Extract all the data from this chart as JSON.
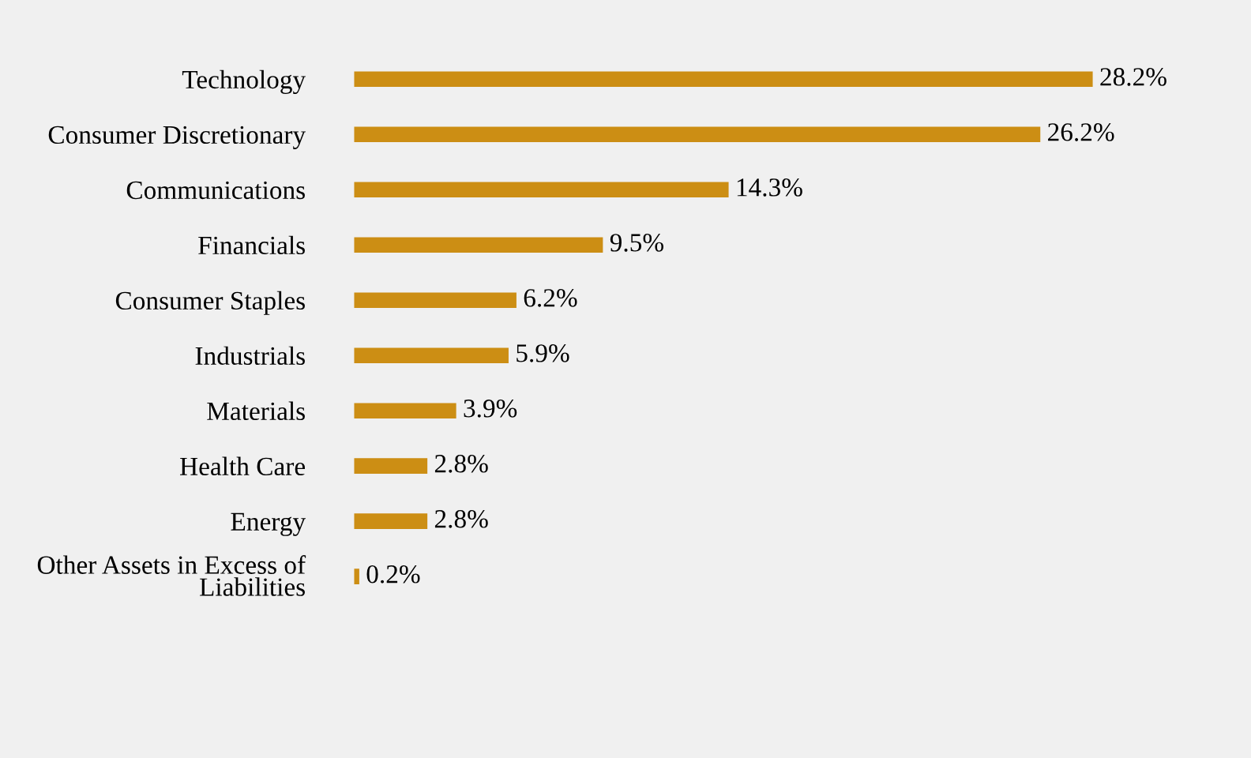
{
  "chart_data": {
    "type": "bar",
    "orientation": "horizontal",
    "categories": [
      "Technology",
      "Consumer Discretionary",
      "Communications",
      "Financials",
      "Consumer Staples",
      "Industrials",
      "Materials",
      "Health Care",
      "Energy",
      "Other Assets in Excess of\nLiabilities"
    ],
    "values": [
      28.2,
      26.2,
      14.3,
      9.5,
      6.2,
      5.9,
      3.9,
      2.8,
      2.8,
      0.2
    ],
    "value_labels": [
      "28.2%",
      "26.2%",
      "14.3%",
      "9.5%",
      "6.2%",
      "5.9%",
      "3.9%",
      "2.8%",
      "2.8%",
      "0.2%"
    ],
    "color": "#cc8e14",
    "grid": false,
    "legend": false
  }
}
